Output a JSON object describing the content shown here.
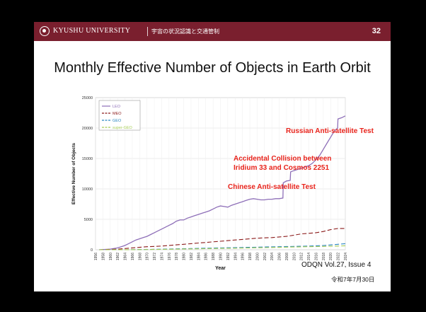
{
  "header": {
    "university": "KYUSHU UNIVERSITY",
    "subtitle": "宇宙の状況認識と交通管制",
    "page_number": "32",
    "bar_color": "#7a1f2e"
  },
  "slide": {
    "title": "Monthly Effective Number of Objects in Earth Orbit",
    "source": "ODQN Vol.27, Issue 4",
    "date": "令和7年7月30日"
  },
  "annotations": {
    "russian": "Russian Anti-satellite Test",
    "collision_line1": "Accidental Collision between",
    "collision_line2": "Iridium 33 and Cosmos 2251",
    "chinese": "Chinese Anti-satellite Test",
    "color": "#e8231b"
  },
  "chart_data": {
    "type": "line",
    "xlabel": "Year",
    "ylabel": "Effective Number of Objects",
    "xlim": [
      1956,
      2024
    ],
    "ylim": [
      0,
      25000
    ],
    "yticks": [
      0,
      5000,
      10000,
      15000,
      20000,
      25000
    ],
    "xticks": [
      1956,
      1958,
      1960,
      1962,
      1964,
      1966,
      1968,
      1970,
      1972,
      1974,
      1976,
      1978,
      1980,
      1982,
      1984,
      1986,
      1988,
      1990,
      1992,
      1994,
      1996,
      1998,
      2000,
      2002,
      2004,
      2006,
      2008,
      2010,
      2012,
      2014,
      2016,
      2018,
      2020,
      2022,
      2024
    ],
    "grid": true,
    "legend_position": "top-left",
    "series": [
      {
        "name": "LEO",
        "color": "#8e6fb8",
        "dash": "solid",
        "x": [
          1957,
          1960,
          1962,
          1963,
          1964,
          1965,
          1966,
          1967,
          1968,
          1969,
          1970,
          1971,
          1972,
          1973,
          1974,
          1975,
          1976,
          1977,
          1978,
          1979,
          1980,
          1981,
          1982,
          1983,
          1984,
          1985,
          1986,
          1987,
          1988,
          1989,
          1990,
          1991,
          1992,
          1993,
          1994,
          1995,
          1996,
          1997,
          1998,
          1999,
          2000,
          2001,
          2002,
          2003,
          2004,
          2005,
          2006,
          2007,
          2007.1,
          2008,
          2009,
          2009.1,
          2010,
          2011,
          2012,
          2013,
          2014,
          2015,
          2016,
          2017,
          2018,
          2019,
          2020,
          2021,
          2021.9,
          2022,
          2023,
          2024
        ],
        "values": [
          0,
          100,
          300,
          500,
          700,
          1000,
          1300,
          1600,
          1800,
          2000,
          2200,
          2500,
          2800,
          3100,
          3400,
          3700,
          4000,
          4300,
          4700,
          4900,
          4900,
          5200,
          5400,
          5600,
          5800,
          6000,
          6200,
          6400,
          6700,
          7000,
          7200,
          7100,
          7000,
          7300,
          7500,
          7700,
          7900,
          8100,
          8300,
          8400,
          8300,
          8200,
          8200,
          8300,
          8300,
          8400,
          8400,
          8500,
          11000,
          11300,
          11400,
          12800,
          13000,
          13200,
          13400,
          13600,
          13800,
          14200,
          14800,
          15500,
          16500,
          17500,
          18500,
          19500,
          20000,
          21500,
          21700,
          22000
        ]
      },
      {
        "name": "MEO",
        "color": "#8b1a1a",
        "dash": "6,3",
        "x": [
          1957,
          1962,
          1964,
          1966,
          1968,
          1970,
          1972,
          1974,
          1976,
          1978,
          1980,
          1982,
          1984,
          1986,
          1988,
          1990,
          1992,
          1994,
          1996,
          1998,
          2000,
          2002,
          2004,
          2006,
          2008,
          2010,
          2012,
          2014,
          2016,
          2018,
          2020,
          2022,
          2024
        ],
        "values": [
          0,
          100,
          200,
          300,
          400,
          500,
          550,
          600,
          700,
          800,
          900,
          1000,
          1100,
          1200,
          1300,
          1400,
          1500,
          1600,
          1700,
          1800,
          1900,
          1950,
          2000,
          2100,
          2200,
          2400,
          2600,
          2700,
          2800,
          3000,
          3300,
          3500,
          3500
        ]
      },
      {
        "name": "GEO",
        "color": "#2b87c0",
        "dash": "6,3",
        "x": [
          1957,
          1964,
          1966,
          1970,
          1974,
          1978,
          1982,
          1986,
          1990,
          1994,
          1998,
          2002,
          2006,
          2010,
          2014,
          2018,
          2022,
          2024
        ],
        "values": [
          0,
          5,
          20,
          50,
          100,
          150,
          200,
          250,
          300,
          350,
          400,
          450,
          500,
          550,
          600,
          700,
          900,
          1000
        ]
      },
      {
        "name": "super-GEO",
        "color": "#a6cc55",
        "dash": "6,3",
        "x": [
          1957,
          1966,
          1970,
          1974,
          1978,
          1982,
          1986,
          1990,
          1994,
          1998,
          2002,
          2006,
          2010,
          2014,
          2018,
          2022,
          2024
        ],
        "values": [
          0,
          10,
          30,
          60,
          100,
          140,
          180,
          220,
          260,
          300,
          350,
          400,
          450,
          500,
          550,
          600,
          650
        ]
      }
    ]
  }
}
